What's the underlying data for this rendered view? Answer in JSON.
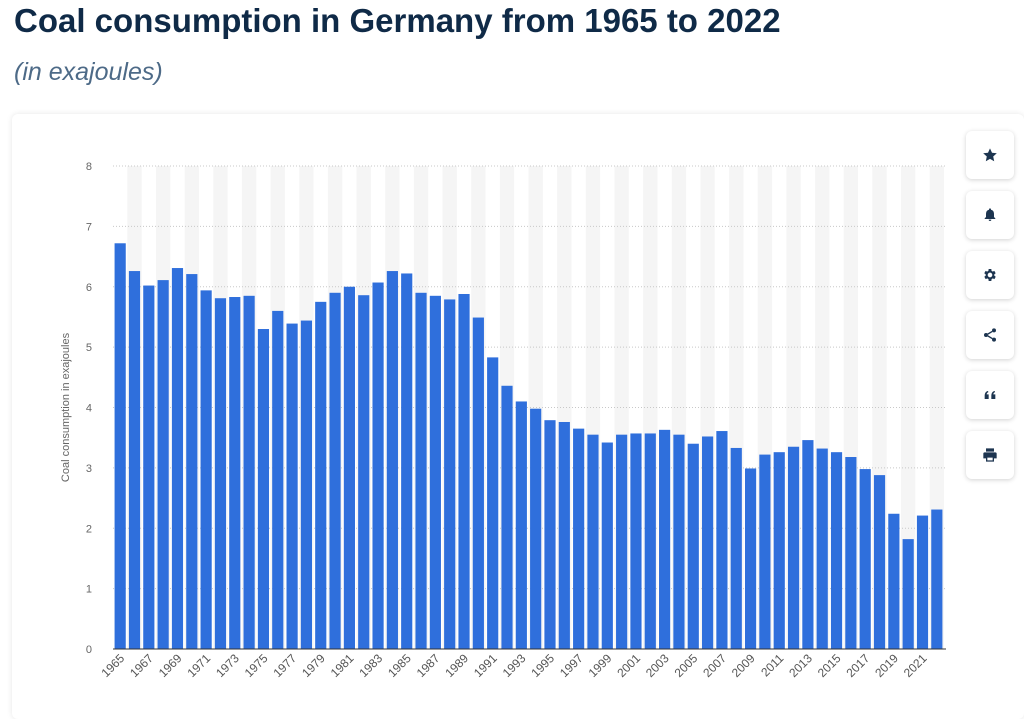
{
  "header": {
    "title": "Coal consumption in Germany from 1965 to 2022",
    "subtitle": "(in exajoules)"
  },
  "toolbar": {
    "buttons": [
      {
        "name": "favorite-button",
        "icon": "star-icon"
      },
      {
        "name": "notification-button",
        "icon": "bell-icon"
      },
      {
        "name": "settings-button",
        "icon": "gear-icon"
      },
      {
        "name": "share-button",
        "icon": "share-icon"
      },
      {
        "name": "cite-button",
        "icon": "quote-icon"
      },
      {
        "name": "print-button",
        "icon": "printer-icon"
      }
    ]
  },
  "colors": {
    "bar": "#2f6fdc",
    "title": "#0f2a47",
    "subtitle": "#4d6a87",
    "icon": "#1d3550"
  },
  "chart_data": {
    "type": "bar",
    "ylabel": "Coal consumption in exajoules",
    "ylim": [
      0,
      8
    ],
    "yticks": [
      0,
      1,
      2,
      3,
      4,
      5,
      6,
      7,
      8
    ],
    "grid": true,
    "categories": [
      "1965",
      "1966",
      "1967",
      "1968",
      "1969",
      "1970",
      "1971",
      "1972",
      "1973",
      "1974",
      "1975",
      "1976",
      "1977",
      "1978",
      "1979",
      "1980",
      "1981",
      "1982",
      "1983",
      "1984",
      "1985",
      "1986",
      "1987",
      "1988",
      "1989",
      "1990",
      "1991",
      "1992",
      "1993",
      "1994",
      "1995",
      "1996",
      "1997",
      "1998",
      "1999",
      "2000",
      "2001",
      "2002",
      "2003",
      "2004",
      "2005",
      "2006",
      "2007",
      "2008",
      "2009",
      "2010",
      "2011",
      "2012",
      "2013",
      "2014",
      "2015",
      "2016",
      "2017",
      "2018",
      "2019",
      "2020",
      "2021",
      "2022"
    ],
    "xtick_labels": [
      "1965",
      "1967",
      "1969",
      "1971",
      "1973",
      "1975",
      "1977",
      "1979",
      "1981",
      "1983",
      "1985",
      "1987",
      "1989",
      "1991",
      "1993",
      "1995",
      "1997",
      "1999",
      "2001",
      "2003",
      "2005",
      "2007",
      "2009",
      "2011",
      "2013",
      "2015",
      "2017",
      "2019",
      "2021"
    ],
    "values": [
      6.72,
      6.26,
      6.02,
      6.11,
      6.31,
      6.21,
      5.94,
      5.81,
      5.83,
      5.85,
      5.3,
      5.6,
      5.39,
      5.44,
      5.75,
      5.9,
      6.0,
      5.86,
      6.07,
      6.26,
      6.22,
      5.9,
      5.85,
      5.79,
      5.88,
      5.49,
      4.83,
      4.36,
      4.1,
      3.98,
      3.79,
      3.76,
      3.65,
      3.55,
      3.42,
      3.55,
      3.57,
      3.57,
      3.63,
      3.55,
      3.4,
      3.52,
      3.61,
      3.33,
      2.99,
      3.22,
      3.26,
      3.35,
      3.46,
      3.32,
      3.26,
      3.18,
      2.98,
      2.88,
      2.24,
      1.82,
      2.21,
      2.31
    ]
  }
}
